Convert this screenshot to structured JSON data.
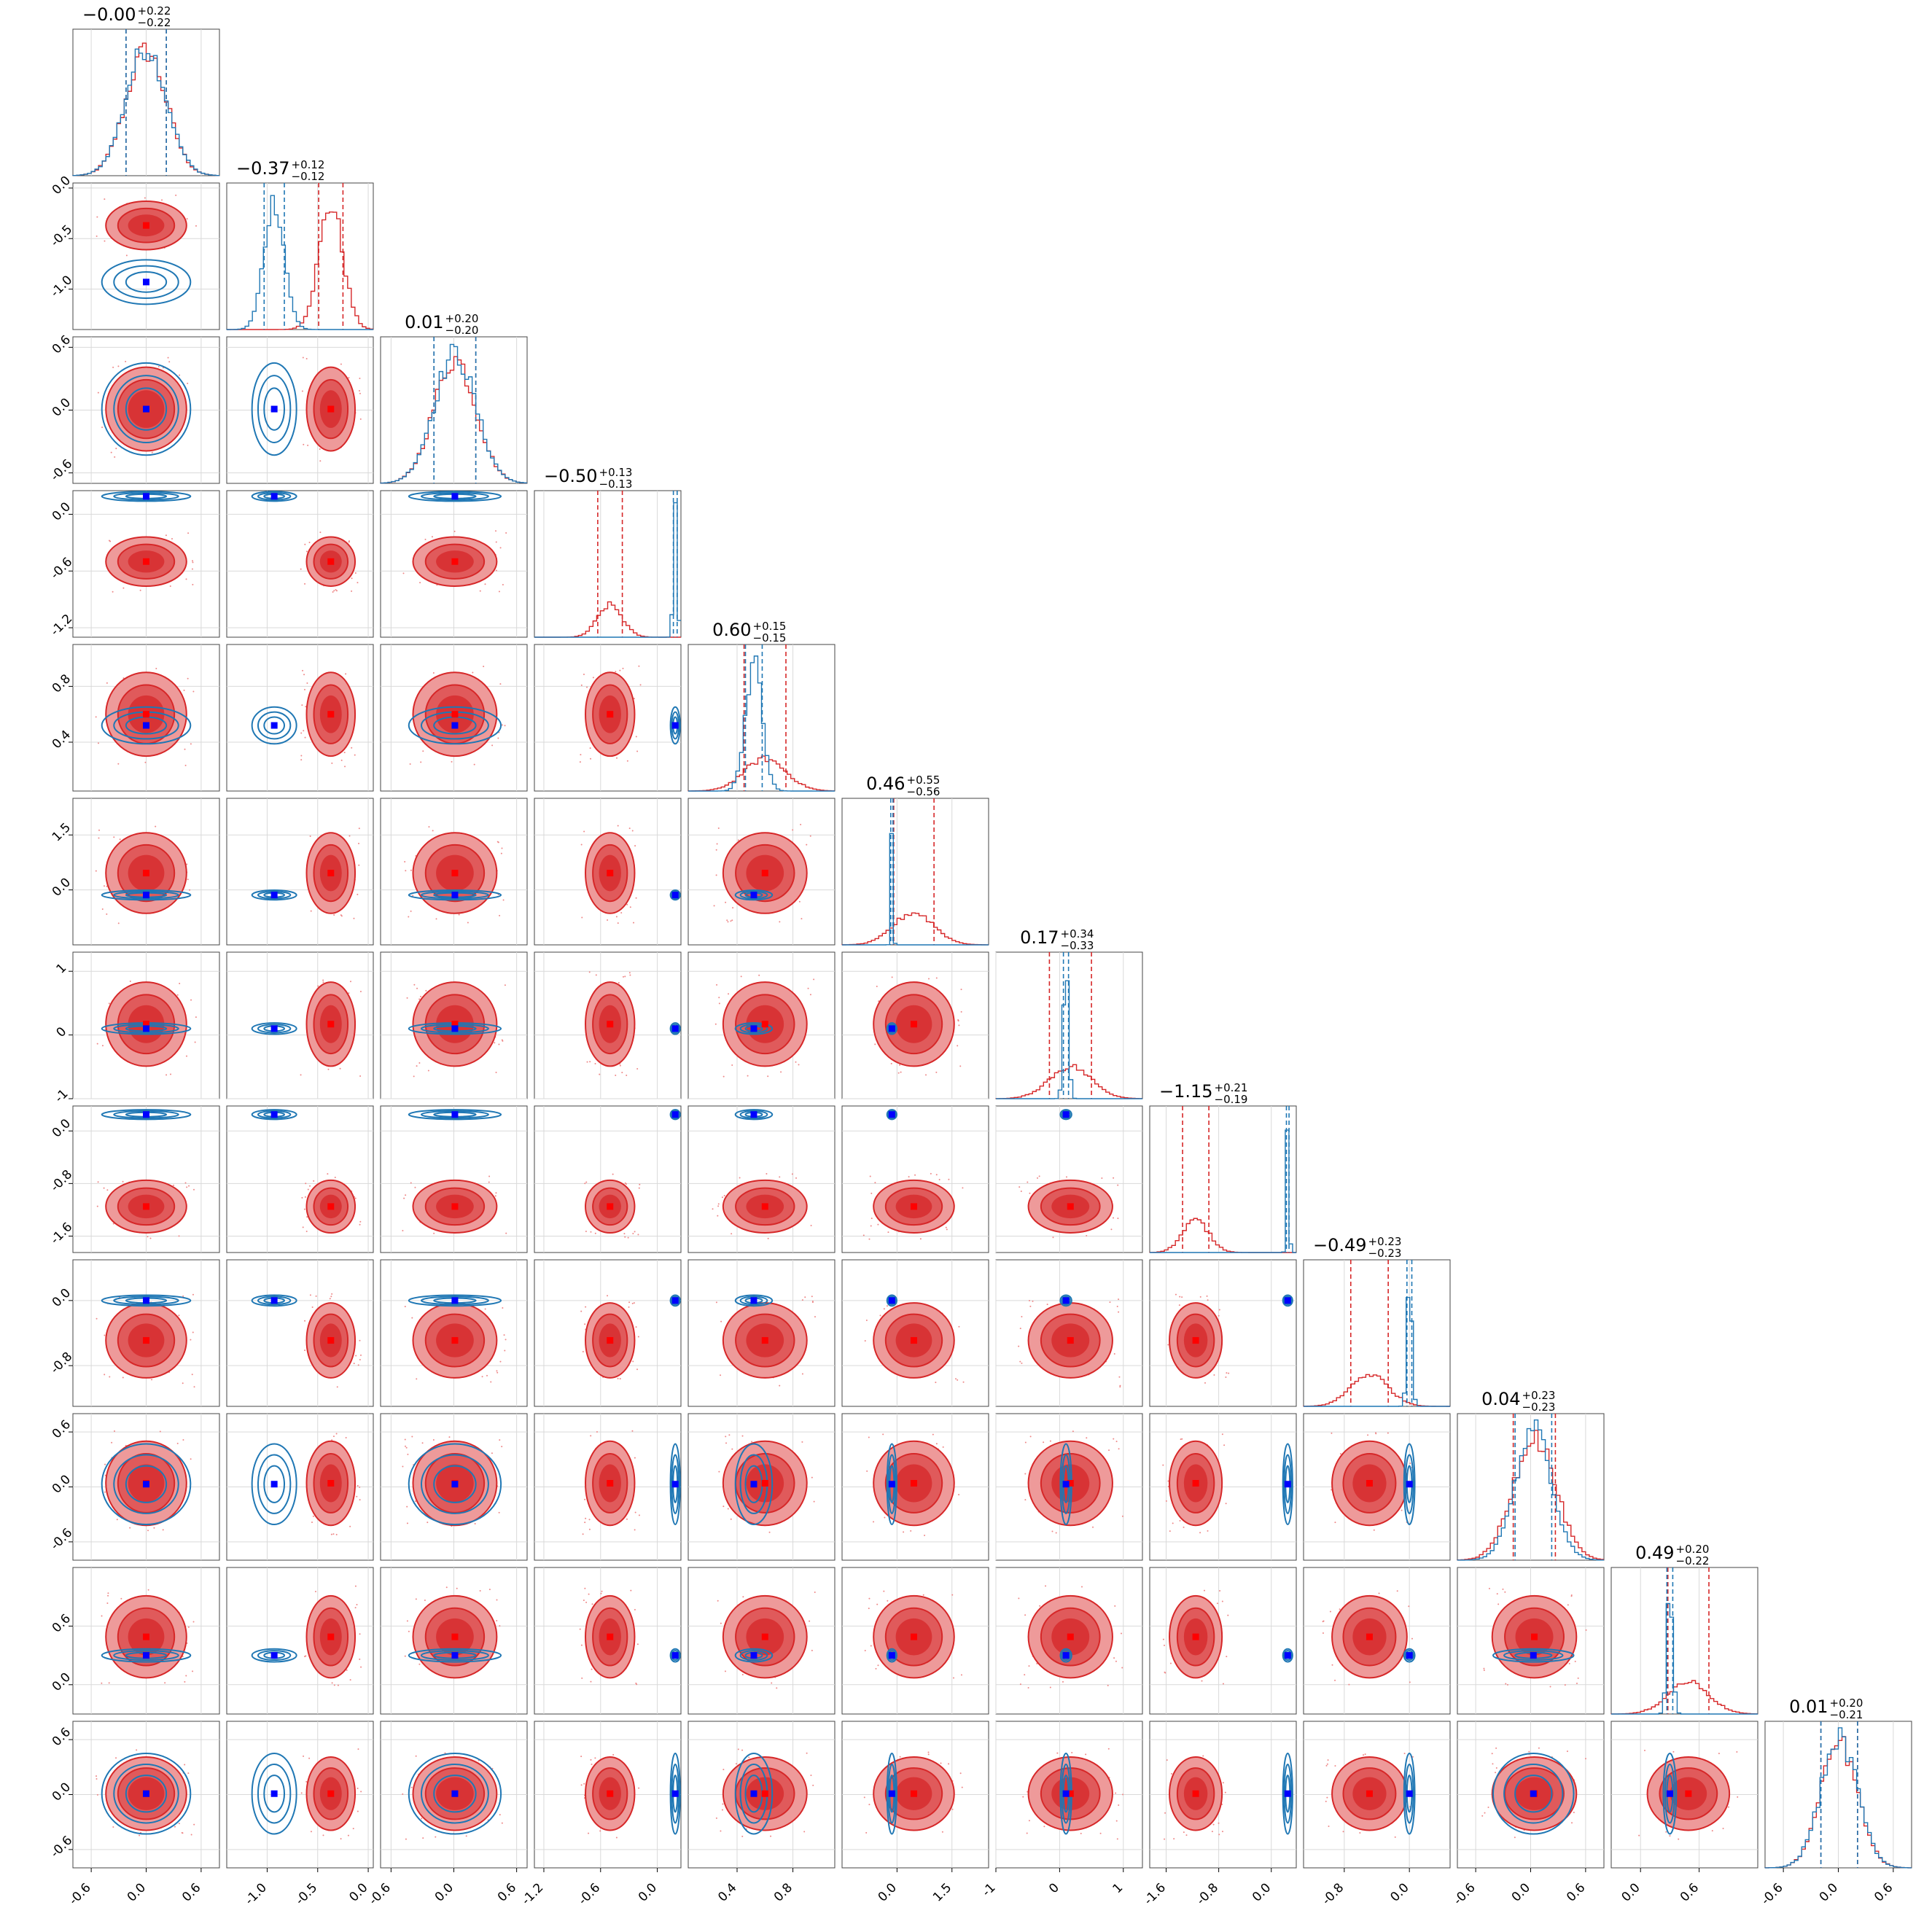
{
  "chart_data": {
    "type": "scatter",
    "subtype": "corner plot",
    "n_params": 12,
    "grid": true,
    "series": [
      {
        "name": "",
        "color": "#d62728",
        "style": "filled contours + step histogram"
      },
      {
        "name": "",
        "color": "#1f77b4",
        "style": "contour lines + step histogram"
      }
    ],
    "marker_colors": {
      "red": "#ff0000",
      "blue": "#0000ff"
    },
    "params": [
      {
        "mean": 0.0,
        "ylim": [
          -0.8,
          0.8
        ],
        "ticks": [
          "-0.6",
          "0.0",
          "0.6"
        ],
        "tickvals": [
          -0.6,
          0.0,
          0.6
        ],
        "red": {
          "mu": 0.0,
          "sd": 0.22
        },
        "blue": {
          "mu": 0.0,
          "sd": 0.22
        },
        "title": "−0.00",
        "up": "+0.22",
        "lo": "−0.22"
      },
      {
        "mean": -0.37,
        "ylim": [
          -1.4,
          0.05
        ],
        "ticks": [
          "-1.0",
          "-0.5",
          "0.0"
        ],
        "tickvals": [
          -1.0,
          -0.5,
          0.0
        ],
        "red": {
          "mu": -0.37,
          "sd": 0.12
        },
        "blue": {
          "mu": -0.93,
          "sd": 0.1
        },
        "title": "−0.37",
        "up": "+0.12",
        "lo": "−0.12"
      },
      {
        "mean": 0.01,
        "ylim": [
          -0.7,
          0.7
        ],
        "ticks": [
          "-0.6",
          "0.0",
          "0.6"
        ],
        "tickvals": [
          -0.6,
          0.0,
          0.6
        ],
        "red": {
          "mu": 0.01,
          "sd": 0.2
        },
        "blue": {
          "mu": 0.01,
          "sd": 0.2
        },
        "title": "0.01",
        "up": "+0.20",
        "lo": "−0.20"
      },
      {
        "mean": -0.5,
        "ylim": [
          -1.3,
          0.25
        ],
        "ticks": [
          "-1.2",
          "-0.6",
          "0.0"
        ],
        "tickvals": [
          -1.2,
          -0.6,
          0.0
        ],
        "red": {
          "mu": -0.5,
          "sd": 0.13
        },
        "blue": {
          "mu": 0.19,
          "sd": 0.02
        },
        "title": "−0.50",
        "up": "+0.13",
        "lo": "−0.13"
      },
      {
        "mean": 0.6,
        "ylim": [
          0.05,
          1.1
        ],
        "ticks": [
          "0.4",
          "0.8"
        ],
        "tickvals": [
          0.4,
          0.8
        ],
        "red": {
          "mu": 0.6,
          "sd": 0.15
        },
        "blue": {
          "mu": 0.52,
          "sd": 0.06
        },
        "title": "0.60",
        "up": "+0.15",
        "lo": "−0.15"
      },
      {
        "mean": 0.46,
        "ylim": [
          -1.5,
          2.5
        ],
        "ticks": [
          "0.0",
          "1.5"
        ],
        "tickvals": [
          0.0,
          1.5
        ],
        "red": {
          "mu": 0.46,
          "sd": 0.55
        },
        "blue": {
          "mu": -0.14,
          "sd": 0.03
        },
        "title": "0.46",
        "up": "+0.55",
        "lo": "−0.56"
      },
      {
        "mean": 0.17,
        "ylim": [
          -1.0,
          1.3
        ],
        "ticks": [
          "-1",
          "0",
          "1"
        ],
        "tickvals": [
          -1,
          0,
          1
        ],
        "red": {
          "mu": 0.17,
          "sd": 0.33
        },
        "blue": {
          "mu": 0.1,
          "sd": 0.04
        },
        "title": "0.17",
        "up": "+0.34",
        "lo": "−0.33"
      },
      {
        "mean": -1.15,
        "ylim": [
          -1.85,
          0.38
        ],
        "ticks": [
          "-1.6",
          "-0.8",
          "0.0"
        ],
        "tickvals": [
          -1.6,
          -0.8,
          0.0
        ],
        "red": {
          "mu": -1.15,
          "sd": 0.2
        },
        "blue": {
          "mu": 0.25,
          "sd": 0.02
        },
        "title": "−1.15",
        "up": "+0.21",
        "lo": "−0.19"
      },
      {
        "mean": -0.49,
        "ylim": [
          -1.3,
          0.5
        ],
        "ticks": [
          "-0.8",
          "0.0"
        ],
        "tickvals": [
          -0.8,
          0.0
        ],
        "red": {
          "mu": -0.49,
          "sd": 0.23
        },
        "blue": {
          "mu": 0.0,
          "sd": 0.03
        },
        "title": "−0.49",
        "up": "+0.23",
        "lo": "−0.23"
      },
      {
        "mean": 0.04,
        "ylim": [
          -0.8,
          0.8
        ],
        "ticks": [
          "-0.6",
          "0.0",
          "0.6"
        ],
        "tickvals": [
          -0.6,
          0.0,
          0.6
        ],
        "red": {
          "mu": 0.04,
          "sd": 0.23
        },
        "blue": {
          "mu": 0.03,
          "sd": 0.2
        },
        "title": "0.04",
        "up": "+0.23",
        "lo": "−0.23"
      },
      {
        "mean": 0.49,
        "ylim": [
          -0.3,
          1.2
        ],
        "ticks": [
          "0.0",
          "0.6"
        ],
        "tickvals": [
          0.0,
          0.6
        ],
        "red": {
          "mu": 0.49,
          "sd": 0.21
        },
        "blue": {
          "mu": 0.3,
          "sd": 0.03
        },
        "title": "0.49",
        "up": "+0.20",
        "lo": "−0.22"
      },
      {
        "mean": 0.01,
        "ylim": [
          -0.8,
          0.8
        ],
        "ticks": [
          "-0.6",
          "0.0",
          "0.6"
        ],
        "tickvals": [
          -0.6,
          0.0,
          0.6
        ],
        "red": {
          "mu": 0.01,
          "sd": 0.2
        },
        "blue": {
          "mu": 0.01,
          "sd": 0.2
        },
        "title": "0.01",
        "up": "+0.20",
        "lo": "−0.21"
      }
    ]
  }
}
